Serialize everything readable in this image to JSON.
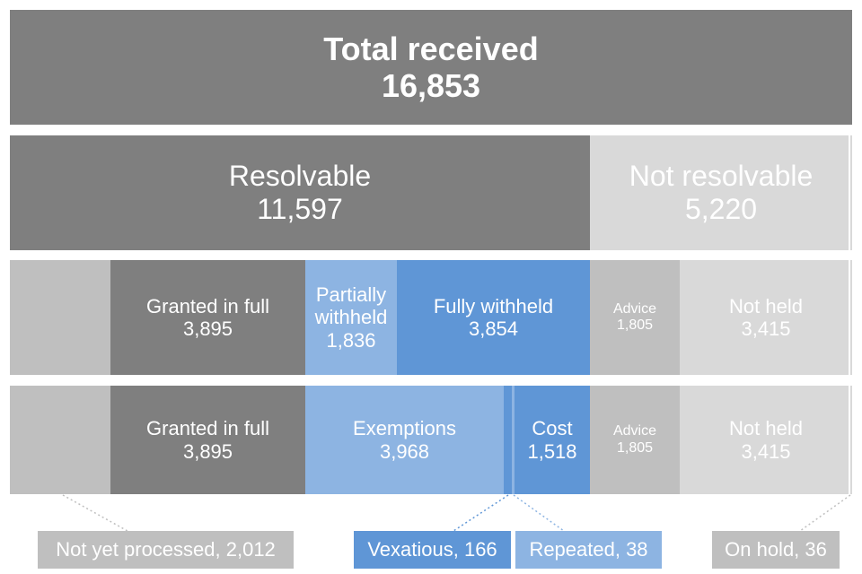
{
  "total": {
    "title": "Total received",
    "value": "16,853"
  },
  "row2": {
    "resolvable": {
      "label": "Resolvable",
      "value": "11,597"
    },
    "not_resolvable": {
      "label": "Not resolvable",
      "value": "5,220"
    }
  },
  "row3": {
    "granted": {
      "label": "Granted in full",
      "value": "3,895"
    },
    "partially": {
      "label_line1": "Partially",
      "label_line2": "withheld",
      "value": "1,836"
    },
    "fully": {
      "label": "Fully withheld",
      "value": "3,854"
    },
    "advice": {
      "label": "Advice",
      "value": "1,805"
    },
    "not_held": {
      "label": "Not held",
      "value": "3,415"
    }
  },
  "row4": {
    "granted": {
      "label": "Granted in full",
      "value": "3,895"
    },
    "exemptions": {
      "label": "Exemptions",
      "value": "3,968"
    },
    "cost": {
      "label": "Cost",
      "value": "1,518"
    },
    "advice": {
      "label": "Advice",
      "value": "1,805"
    },
    "not_held": {
      "label": "Not held",
      "value": "3,415"
    }
  },
  "callouts": {
    "not_yet_processed": "Not yet processed, 2,012",
    "vexatious": "Vexatious, 166",
    "repeated": "Repeated, 38",
    "on_hold": "On hold, 36"
  }
}
